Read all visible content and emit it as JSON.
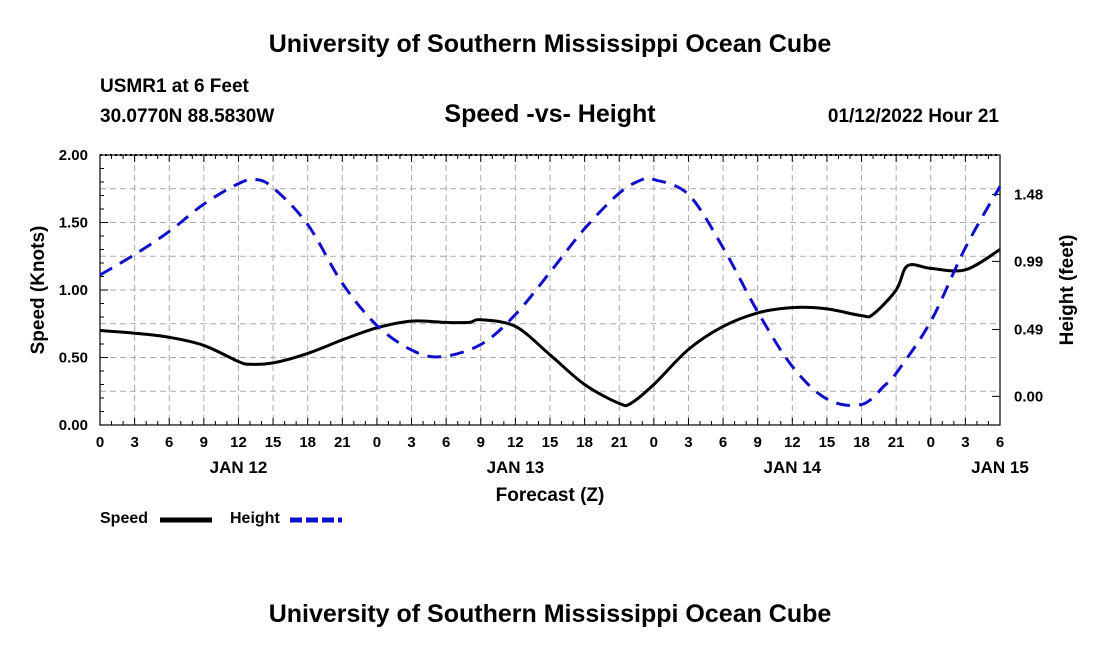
{
  "header": {
    "title": "University of Southern Mississippi Ocean Cube",
    "station": "USMR1 at 6 Feet",
    "coordinates": "30.0770N  88.5830W",
    "chart_title": "Speed -vs- Height",
    "datetime": "01/12/2022 Hour 21"
  },
  "footer": {
    "title": "University of Southern Mississippi Ocean Cube"
  },
  "chart_data": {
    "type": "line",
    "title": "Speed -vs- Height",
    "xlabel": "Forecast (Z)",
    "ylabel_left": "Speed (Knots)",
    "ylabel_right": "Height (feet)",
    "x_unit": "forecast hours from 00Z JAN 12",
    "xlim": [
      0,
      78
    ],
    "ylim_left": [
      0,
      2.0
    ],
    "ylim_right": [
      -0.21,
      1.77
    ],
    "hour_ticks": [
      0,
      3,
      6,
      9,
      12,
      15,
      18,
      21,
      24,
      27,
      30,
      33,
      36,
      39,
      42,
      45,
      48,
      51,
      54,
      57,
      60,
      63,
      66,
      69,
      72,
      75,
      78
    ],
    "hour_tick_labels": [
      "0",
      "3",
      "6",
      "9",
      "12",
      "15",
      "18",
      "21",
      "0",
      "3",
      "6",
      "9",
      "12",
      "15",
      "18",
      "21",
      "0",
      "3",
      "6",
      "9",
      "12",
      "15",
      "18",
      "21",
      "0",
      "3",
      "6"
    ],
    "left_ticks": [
      0.0,
      0.5,
      1.0,
      1.5,
      2.0
    ],
    "left_tick_labels": [
      "0.00",
      "0.50",
      "1.00",
      "1.50",
      "2.00"
    ],
    "right_ticks": [
      0.0,
      0.49,
      0.99,
      1.48
    ],
    "right_tick_labels": [
      "0.00",
      "0.49",
      "0.99",
      "1.48"
    ],
    "day_labels": [
      {
        "hour": 12,
        "label": "JAN 12"
      },
      {
        "hour": 36,
        "label": "JAN 13"
      },
      {
        "hour": 60,
        "label": "JAN 14"
      },
      {
        "hour": 78,
        "label": "JAN 15"
      }
    ],
    "grid": true,
    "legend": [
      {
        "name": "Speed",
        "color": "#000000",
        "style": "solid"
      },
      {
        "name": "Height",
        "color": "#1010cc",
        "style": "dashed"
      }
    ],
    "series": [
      {
        "name": "Speed",
        "axis": "left",
        "color": "#000000",
        "style": "solid",
        "x": [
          0,
          3,
          6,
          9,
          12,
          13,
          15,
          18,
          21,
          24,
          27,
          30,
          32,
          33,
          36,
          39,
          42,
          45,
          46,
          48,
          51,
          54,
          57,
          60,
          63,
          66,
          67,
          69,
          70,
          72,
          75,
          78
        ],
        "values": [
          0.7,
          0.68,
          0.65,
          0.59,
          0.47,
          0.45,
          0.46,
          0.53,
          0.63,
          0.72,
          0.77,
          0.76,
          0.76,
          0.78,
          0.73,
          0.52,
          0.3,
          0.16,
          0.16,
          0.3,
          0.56,
          0.73,
          0.83,
          0.87,
          0.86,
          0.81,
          0.82,
          1.0,
          1.18,
          1.16,
          1.15,
          1.3
        ]
      },
      {
        "name": "Height",
        "axis": "right",
        "color": "#1010cc",
        "style": "dashed",
        "x": [
          0,
          3,
          6,
          9,
          12,
          13.5,
          15,
          18,
          21,
          24,
          27,
          29.5,
          33,
          36,
          39,
          42,
          45,
          47,
          48,
          51,
          54,
          57,
          60,
          63,
          66,
          68,
          69,
          72,
          75,
          78
        ],
        "values": [
          0.89,
          1.04,
          1.21,
          1.41,
          1.56,
          1.59,
          1.53,
          1.26,
          0.83,
          0.52,
          0.34,
          0.29,
          0.38,
          0.6,
          0.91,
          1.23,
          1.49,
          1.59,
          1.59,
          1.48,
          1.09,
          0.62,
          0.22,
          -0.02,
          -0.06,
          0.08,
          0.17,
          0.55,
          1.09,
          1.54
        ]
      }
    ]
  }
}
